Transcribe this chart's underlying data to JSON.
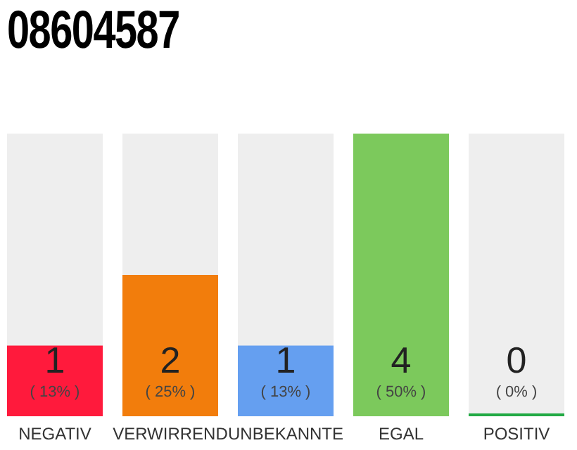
{
  "chart_data": {
    "type": "bar",
    "title": "08604587",
    "categories": [
      "NEGATIV",
      "VERWIRREND",
      "UNBEKANNTE",
      "EGAL",
      "POSITIV"
    ],
    "values": [
      1,
      2,
      1,
      4,
      0
    ],
    "colors": [
      "#ff1a3c",
      "#f27d0c",
      "#659ff0",
      "#7cc95c",
      "#22aa44"
    ],
    "ylim": [
      0,
      4
    ],
    "data_labels": true,
    "tick_labels": "x",
    "annotations": [
      "( 13% )",
      "( 25% )",
      "( 13% )",
      "( 50% )",
      "( 0% )"
    ]
  }
}
